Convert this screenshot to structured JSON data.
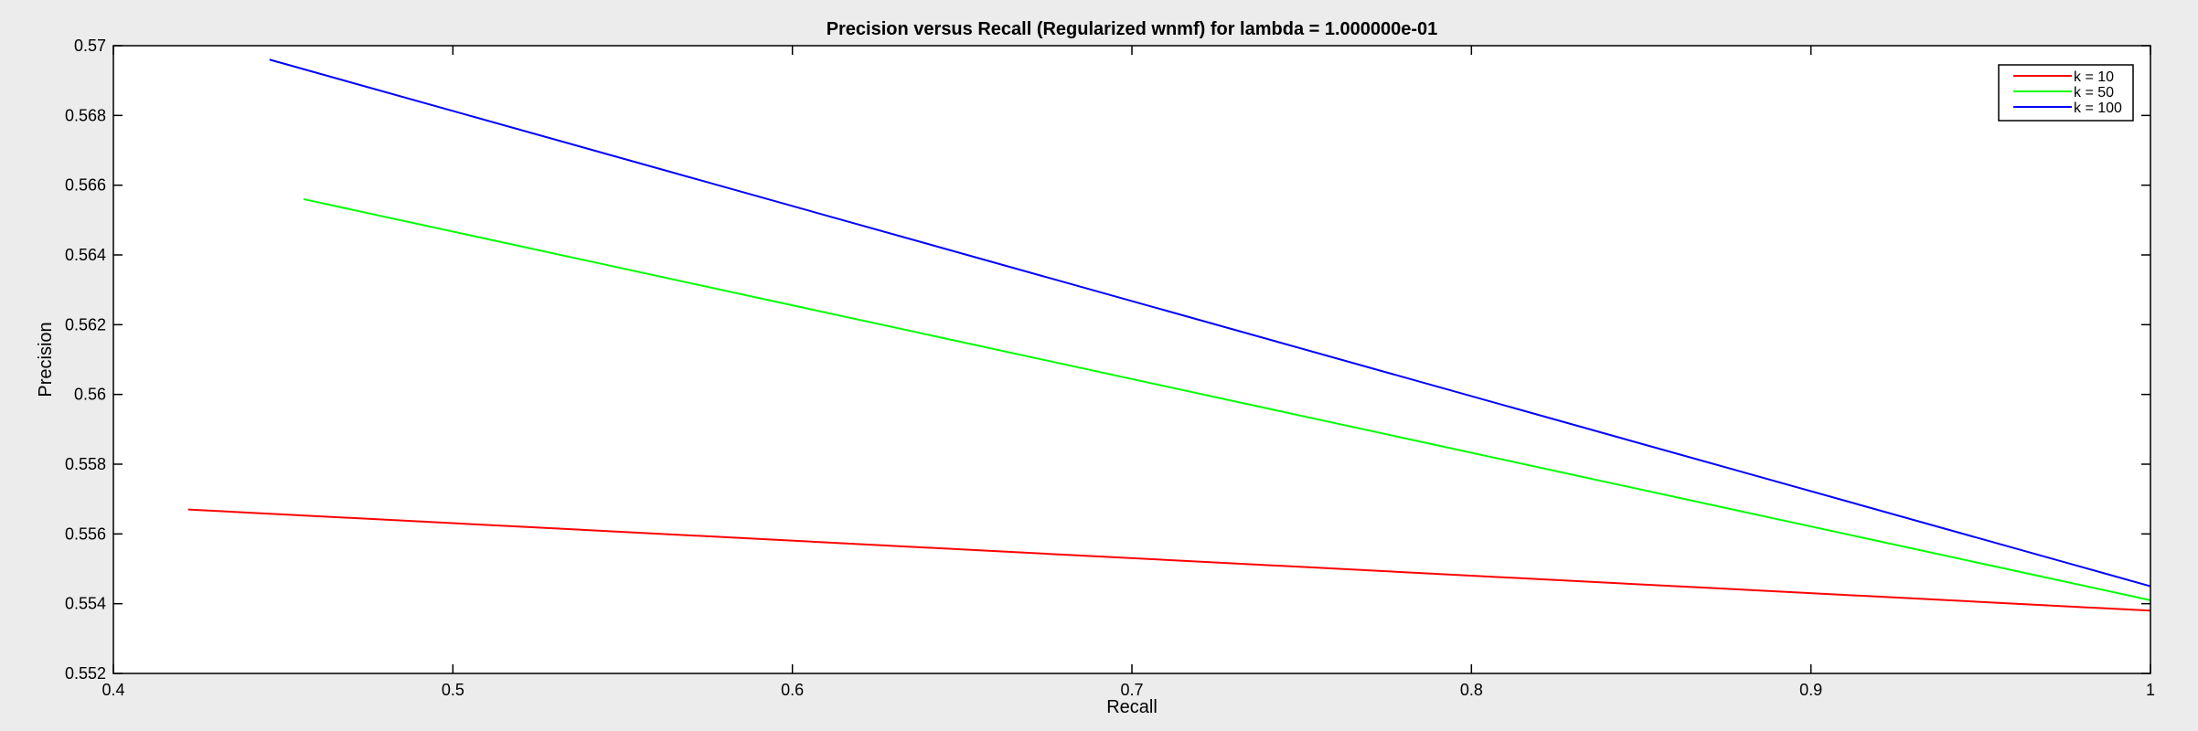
{
  "chart_data": {
    "type": "line",
    "title": "Precision versus Recall (Regularized wnmf) for lambda = 1.000000e-01",
    "xlabel": "Recall",
    "ylabel": "Precision",
    "xlim": [
      0.4,
      1.0
    ],
    "ylim": [
      0.552,
      0.57
    ],
    "xticks": [
      0.4,
      0.5,
      0.6,
      0.7,
      0.8,
      0.9,
      1.0
    ],
    "xtick_labels": [
      "0.4",
      "0.5",
      "0.6",
      "0.7",
      "0.8",
      "0.9",
      "1"
    ],
    "yticks": [
      0.552,
      0.554,
      0.556,
      0.558,
      0.56,
      0.562,
      0.564,
      0.566,
      0.568,
      0.57
    ],
    "ytick_labels": [
      "0.552",
      "0.554",
      "0.556",
      "0.558",
      "0.56",
      "0.562",
      "0.564",
      "0.566",
      "0.568",
      "0.57"
    ],
    "grid": false,
    "legend_position": "top-right",
    "series": [
      {
        "name": "k = 10",
        "color": "#ff0000",
        "x": [
          0.422,
          1.0
        ],
        "y": [
          0.5567,
          0.5538
        ]
      },
      {
        "name": "k = 50",
        "color": "#00ff00",
        "x": [
          0.456,
          1.0
        ],
        "y": [
          0.5656,
          0.5541
        ]
      },
      {
        "name": "k = 100",
        "color": "#0000ff",
        "x": [
          0.446,
          1.0
        ],
        "y": [
          0.5696,
          0.5545
        ]
      }
    ]
  }
}
